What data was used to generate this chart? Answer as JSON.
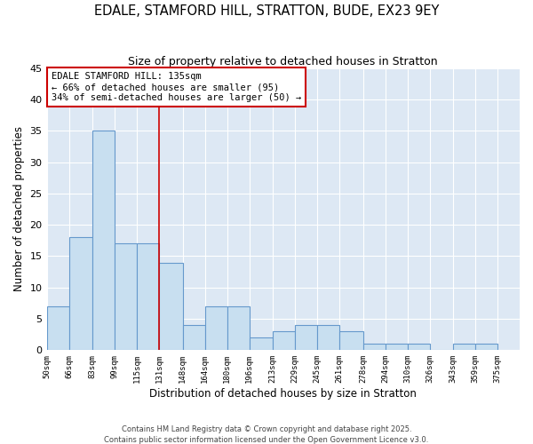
{
  "title": "EDALE, STAMFORD HILL, STRATTON, BUDE, EX23 9EY",
  "subtitle": "Size of property relative to detached houses in Stratton",
  "xlabel": "Distribution of detached houses by size in Stratton",
  "ylabel": "Number of detached properties",
  "bar_color": "#c8dff0",
  "bar_edge_color": "#6699cc",
  "bg_color": "#dde8f4",
  "grid_color": "white",
  "bins": [
    50,
    66,
    83,
    99,
    115,
    131,
    148,
    164,
    180,
    196,
    213,
    229,
    245,
    261,
    278,
    294,
    310,
    326,
    343,
    359,
    375
  ],
  "bin_labels": [
    "50sqm",
    "66sqm",
    "83sqm",
    "99sqm",
    "115sqm",
    "131sqm",
    "148sqm",
    "164sqm",
    "180sqm",
    "196sqm",
    "213sqm",
    "229sqm",
    "245sqm",
    "261sqm",
    "278sqm",
    "294sqm",
    "310sqm",
    "326sqm",
    "343sqm",
    "359sqm",
    "375sqm"
  ],
  "counts": [
    7,
    18,
    35,
    17,
    17,
    14,
    4,
    7,
    7,
    2,
    3,
    4,
    4,
    3,
    1,
    1,
    1,
    0,
    1,
    1
  ],
  "vline_x": 131,
  "vline_color": "#cc0000",
  "annotation_title": "EDALE STAMFORD HILL: 135sqm",
  "annotation_line1": "← 66% of detached houses are smaller (95)",
  "annotation_line2": "34% of semi-detached houses are larger (50) →",
  "ylim": [
    0,
    45
  ],
  "yticks": [
    0,
    5,
    10,
    15,
    20,
    25,
    30,
    35,
    40,
    45
  ],
  "footer1": "Contains HM Land Registry data © Crown copyright and database right 2025.",
  "footer2": "Contains public sector information licensed under the Open Government Licence v3.0."
}
